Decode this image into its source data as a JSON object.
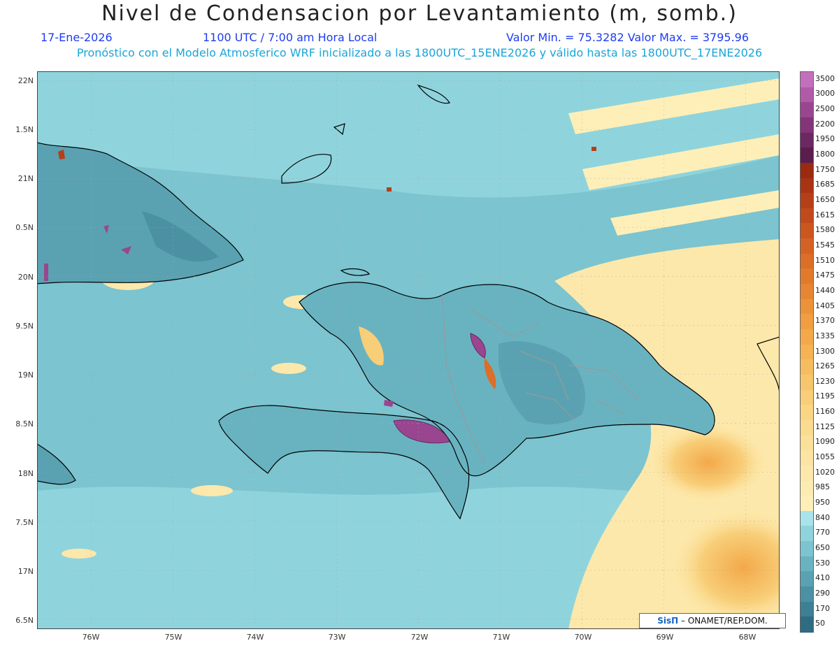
{
  "header": {
    "title": "Nivel de Condensacion por Levantamiento (m, somb.)",
    "date": "17-Ene-2026",
    "time": "1100 UTC / 7:00 am Hora Local",
    "minmax": "Valor Min. = 75.3282  Valor Max. = 3795.96",
    "model": "Pronóstico con el Modelo Atmosferico WRF inicializado a las 1800UTC_15ENE2026 y válido hasta las  1800UTC_17ENE2026"
  },
  "axes": {
    "lat_labels": [
      "22N",
      "1.5N",
      "21N",
      "0.5N",
      "20N",
      "9.5N",
      "19N",
      "8.5N",
      "18N",
      "7.5N",
      "17N",
      "6.5N"
    ],
    "lon_labels": [
      "76W",
      "75W",
      "74W",
      "73W",
      "72W",
      "71W",
      "70W",
      "69W",
      "68W"
    ]
  },
  "legend": {
    "levels": [
      "3500",
      "3000",
      "2500",
      "2200",
      "1950",
      "1800",
      "1750",
      "1685",
      "1650",
      "1615",
      "1580",
      "1545",
      "1510",
      "1475",
      "1440",
      "1405",
      "1370",
      "1335",
      "1300",
      "1265",
      "1230",
      "1195",
      "1160",
      "1125",
      "1090",
      "1055",
      "1020",
      "985",
      "950",
      "840",
      "770",
      "650",
      "530",
      "410",
      "290",
      "170",
      "50"
    ],
    "colors": [
      "#c36fbe",
      "#b05aa8",
      "#9a4590",
      "#823578",
      "#6b2861",
      "#5a1d4e",
      "#9a2a10",
      "#a83414",
      "#b53f18",
      "#c04a1c",
      "#cb5620",
      "#d46224",
      "#dc6e28",
      "#e27a2c",
      "#e78632",
      "#ec9238",
      "#f09e40",
      "#f3a94a",
      "#f5b354",
      "#f6bd60",
      "#f7c66c",
      "#f8ce78",
      "#f9d584",
      "#fadb90",
      "#fbe09a",
      "#fce4a3",
      "#fde8ab",
      "#fdecb2",
      "#feefb8",
      "#a8e4ea",
      "#8fd4dc",
      "#7cc4cf",
      "#69b3c1",
      "#5aa2b2",
      "#4b91a3",
      "#3d7f93",
      "#2f6c82"
    ]
  },
  "credit": {
    "brand": "SisΠ",
    "text": "– ONAMET/REP.DOM."
  }
}
